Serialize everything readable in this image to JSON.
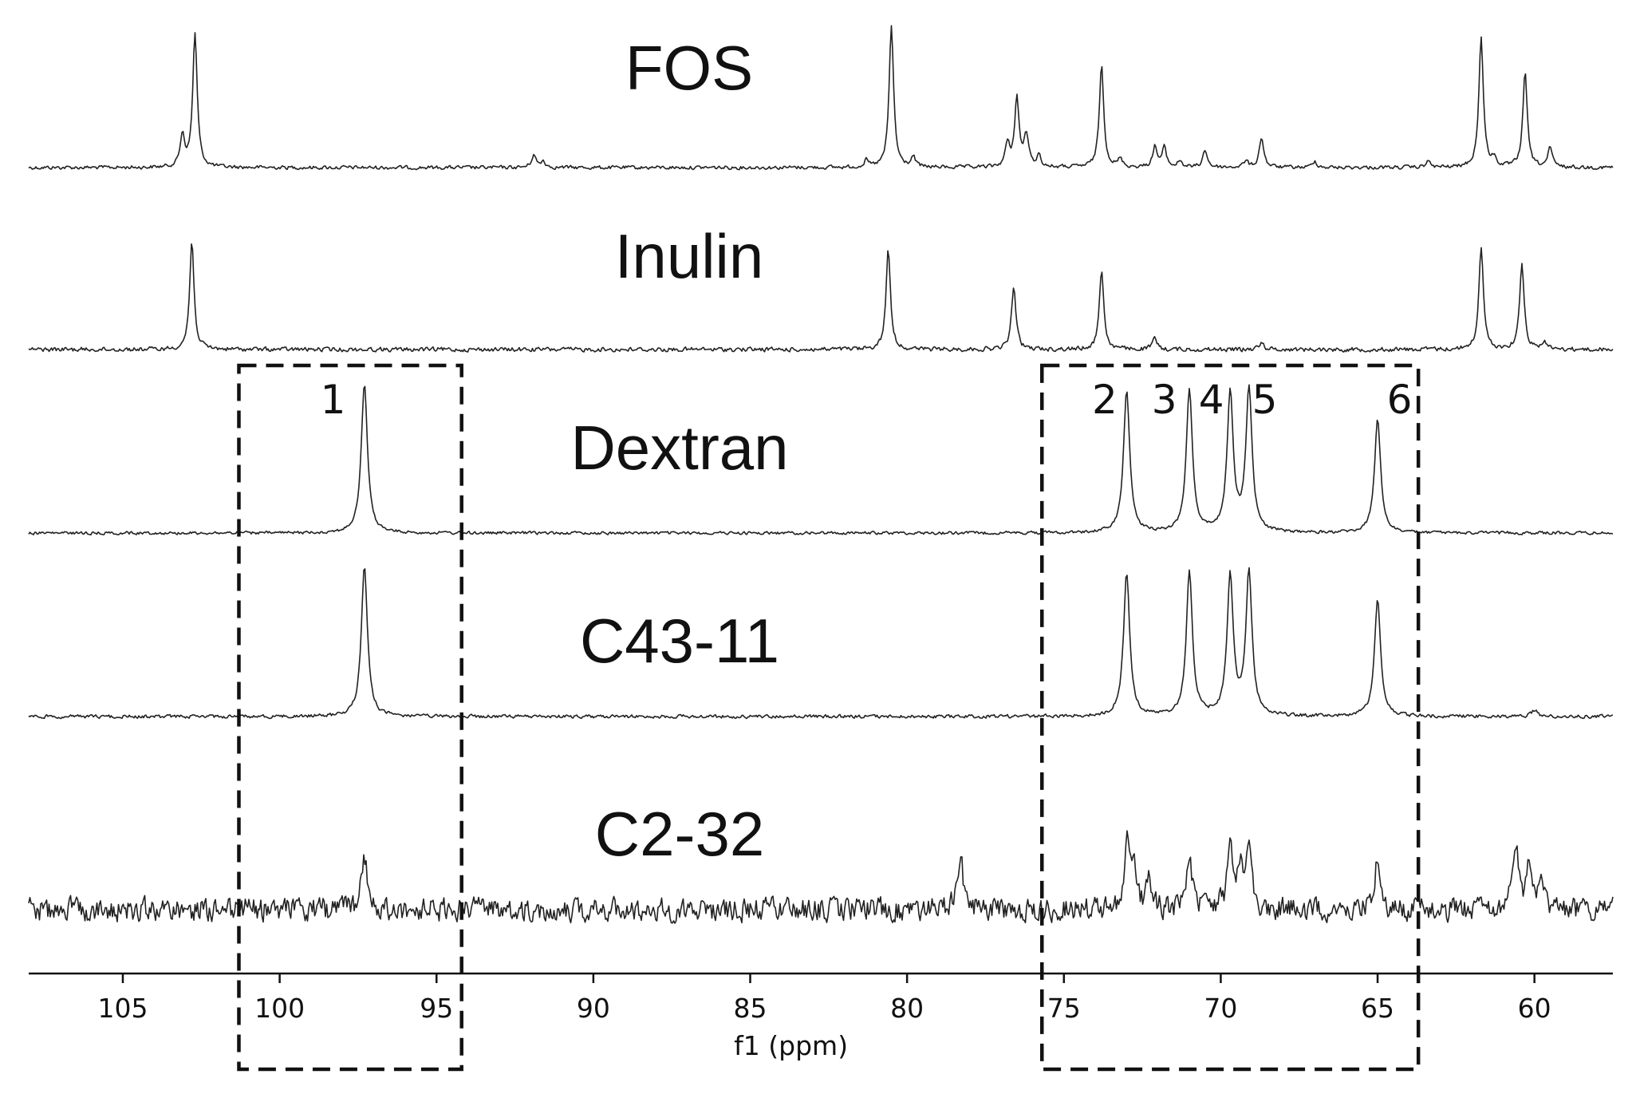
{
  "chart_data": {
    "type": "line",
    "title": "",
    "xlabel": "f1 (ppm)",
    "ylabel": "",
    "xlim": [
      108,
      57.5
    ],
    "x_reversed": true,
    "x_ticks": [
      105,
      100,
      95,
      90,
      85,
      80,
      75,
      70,
      65,
      60
    ],
    "grid": false,
    "legend": "none",
    "series": [
      {
        "name": "FOS",
        "peaks": [
          {
            "ppm": 103.1,
            "height": 40
          },
          {
            "ppm": 102.7,
            "height": 168
          },
          {
            "ppm": 91.9,
            "height": 16
          },
          {
            "ppm": 91.6,
            "height": 8
          },
          {
            "ppm": 81.3,
            "height": 8
          },
          {
            "ppm": 80.5,
            "height": 178
          },
          {
            "ppm": 79.8,
            "height": 12
          },
          {
            "ppm": 76.8,
            "height": 28
          },
          {
            "ppm": 76.5,
            "height": 86
          },
          {
            "ppm": 76.2,
            "height": 40
          },
          {
            "ppm": 75.8,
            "height": 14
          },
          {
            "ppm": 73.8,
            "height": 128
          },
          {
            "ppm": 73.2,
            "height": 10
          },
          {
            "ppm": 72.1,
            "height": 26
          },
          {
            "ppm": 71.8,
            "height": 24
          },
          {
            "ppm": 71.3,
            "height": 8
          },
          {
            "ppm": 70.5,
            "height": 22
          },
          {
            "ppm": 69.2,
            "height": 8
          },
          {
            "ppm": 68.7,
            "height": 38
          },
          {
            "ppm": 67.0,
            "height": 8
          },
          {
            "ppm": 63.4,
            "height": 8
          },
          {
            "ppm": 61.7,
            "height": 164
          },
          {
            "ppm": 61.3,
            "height": 10
          },
          {
            "ppm": 60.3,
            "height": 118
          },
          {
            "ppm": 59.5,
            "height": 24
          }
        ]
      },
      {
        "name": "Inulin",
        "peaks": [
          {
            "ppm": 102.8,
            "height": 135
          },
          {
            "ppm": 80.6,
            "height": 126
          },
          {
            "ppm": 76.6,
            "height": 80
          },
          {
            "ppm": 73.8,
            "height": 100
          },
          {
            "ppm": 72.1,
            "height": 14
          },
          {
            "ppm": 68.7,
            "height": 10
          },
          {
            "ppm": 61.7,
            "height": 130
          },
          {
            "ppm": 60.4,
            "height": 110
          },
          {
            "ppm": 59.7,
            "height": 10
          }
        ]
      },
      {
        "name": "Dextran",
        "peaks": [
          {
            "ppm": 97.3,
            "height": 188
          },
          {
            "ppm": 73.0,
            "height": 180
          },
          {
            "ppm": 71.0,
            "height": 180
          },
          {
            "ppm": 69.7,
            "height": 174
          },
          {
            "ppm": 69.1,
            "height": 180
          },
          {
            "ppm": 65.0,
            "height": 142
          }
        ]
      },
      {
        "name": "C43-11",
        "peaks": [
          {
            "ppm": 97.3,
            "height": 188
          },
          {
            "ppm": 73.0,
            "height": 180
          },
          {
            "ppm": 71.0,
            "height": 180
          },
          {
            "ppm": 69.7,
            "height": 174
          },
          {
            "ppm": 69.1,
            "height": 180
          },
          {
            "ppm": 65.0,
            "height": 146
          },
          {
            "ppm": 60.0,
            "height": 8
          }
        ]
      },
      {
        "name": "C2-32",
        "peaks": [
          {
            "ppm": 97.3,
            "height": 70
          },
          {
            "ppm": 78.3,
            "height": 66
          },
          {
            "ppm": 73.0,
            "height": 80
          },
          {
            "ppm": 72.8,
            "height": 54
          },
          {
            "ppm": 72.3,
            "height": 36
          },
          {
            "ppm": 71.0,
            "height": 72
          },
          {
            "ppm": 69.7,
            "height": 74
          },
          {
            "ppm": 69.4,
            "height": 52
          },
          {
            "ppm": 69.1,
            "height": 82
          },
          {
            "ppm": 65.0,
            "height": 66
          },
          {
            "ppm": 60.6,
            "height": 80
          },
          {
            "ppm": 60.2,
            "height": 44
          },
          {
            "ppm": 59.8,
            "height": 28
          }
        ]
      }
    ],
    "annotations": {
      "peak_numbers": [
        {
          "text": "1",
          "ppm": 98.3
        },
        {
          "text": "2",
          "ppm": 73.7
        },
        {
          "text": "3",
          "ppm": 71.8
        },
        {
          "text": "4",
          "ppm": 70.3
        },
        {
          "text": "5",
          "ppm": 68.6
        },
        {
          "text": "6",
          "ppm": 64.3
        }
      ],
      "boxes": [
        {
          "from_ppm": 101.3,
          "to_ppm": 94.2
        },
        {
          "from_ppm": 75.7,
          "to_ppm": 63.7
        }
      ]
    }
  }
}
